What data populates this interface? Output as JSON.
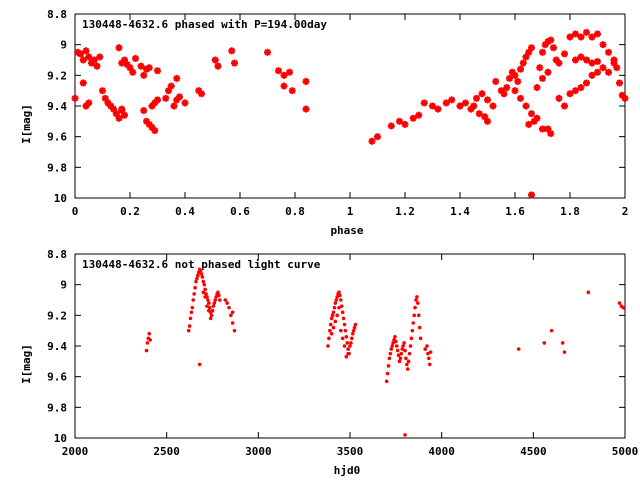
{
  "chart_data": [
    {
      "type": "scatter",
      "title": "130448-4632.6 phased with P=194.00day",
      "xlabel": "phase",
      "ylabel": "I[mag]",
      "xlim": [
        0,
        2
      ],
      "ylim": [
        10,
        8.8
      ],
      "y_inverted": true,
      "grid": false,
      "color": "#ff0000",
      "marker": "asterisk",
      "xticks": [
        "0",
        "0.2",
        "0.4",
        "0.6",
        "0.8",
        "1",
        "1.2",
        "1.4",
        "1.6",
        "1.8",
        "2"
      ],
      "yticks": [
        "8.8",
        "9",
        "9.2",
        "9.4",
        "9.6",
        "9.8",
        "10"
      ],
      "points": [
        [
          0.01,
          9.05
        ],
        [
          0.02,
          9.06
        ],
        [
          0.03,
          9.1
        ],
        [
          0.04,
          9.04
        ],
        [
          0.05,
          9.08
        ],
        [
          0.06,
          9.12
        ],
        [
          0.07,
          9.1
        ],
        [
          0.08,
          9.14
        ],
        [
          0.05,
          9.38
        ],
        [
          0.04,
          9.4
        ],
        [
          0.03,
          9.25
        ],
        [
          0.0,
          9.35
        ],
        [
          0.09,
          9.08
        ],
        [
          0.1,
          9.3
        ],
        [
          0.11,
          9.35
        ],
        [
          0.12,
          9.38
        ],
        [
          0.13,
          9.4
        ],
        [
          0.14,
          9.42
        ],
        [
          0.15,
          9.45
        ],
        [
          0.16,
          9.48
        ],
        [
          0.17,
          9.43
        ],
        [
          0.16,
          9.02
        ],
        [
          0.17,
          9.12
        ],
        [
          0.18,
          9.1
        ],
        [
          0.19,
          9.13
        ],
        [
          0.2,
          9.15
        ],
        [
          0.21,
          9.18
        ],
        [
          0.22,
          9.09
        ],
        [
          0.24,
          9.14
        ],
        [
          0.25,
          9.2
        ],
        [
          0.26,
          9.16
        ],
        [
          0.27,
          9.15
        ],
        [
          0.28,
          9.4
        ],
        [
          0.29,
          9.38
        ],
        [
          0.3,
          9.36
        ],
        [
          0.26,
          9.5
        ],
        [
          0.27,
          9.52
        ],
        [
          0.28,
          9.54
        ],
        [
          0.29,
          9.56
        ],
        [
          0.25,
          9.43
        ],
        [
          0.33,
          9.35
        ],
        [
          0.34,
          9.3
        ],
        [
          0.35,
          9.27
        ],
        [
          0.36,
          9.4
        ],
        [
          0.37,
          9.36
        ],
        [
          0.38,
          9.34
        ],
        [
          0.4,
          9.38
        ],
        [
          0.37,
          9.22
        ],
        [
          0.3,
          9.17
        ],
        [
          0.45,
          9.3
        ],
        [
          0.46,
          9.32
        ],
        [
          0.51,
          9.1
        ],
        [
          0.52,
          9.14
        ],
        [
          0.57,
          9.04
        ],
        [
          0.58,
          9.12
        ],
        [
          0.7,
          9.05
        ],
        [
          0.74,
          9.17
        ],
        [
          0.76,
          9.2
        ],
        [
          0.78,
          9.18
        ],
        [
          0.76,
          9.27
        ],
        [
          0.79,
          9.3
        ],
        [
          0.84,
          9.24
        ],
        [
          0.84,
          9.42
        ],
        [
          0.17,
          9.42
        ],
        [
          0.18,
          9.46
        ],
        [
          1.08,
          9.63
        ],
        [
          1.1,
          9.6
        ],
        [
          1.15,
          9.53
        ],
        [
          1.18,
          9.5
        ],
        [
          1.2,
          9.52
        ],
        [
          1.23,
          9.48
        ],
        [
          1.25,
          9.46
        ],
        [
          1.27,
          9.38
        ],
        [
          1.3,
          9.4
        ],
        [
          1.32,
          9.42
        ],
        [
          1.35,
          9.38
        ],
        [
          1.37,
          9.36
        ],
        [
          1.4,
          9.4
        ],
        [
          1.42,
          9.38
        ],
        [
          1.44,
          9.42
        ],
        [
          1.45,
          9.4
        ],
        [
          1.47,
          9.45
        ],
        [
          1.49,
          9.47
        ],
        [
          1.5,
          9.5
        ],
        [
          1.46,
          9.35
        ],
        [
          1.48,
          9.32
        ],
        [
          1.5,
          9.36
        ],
        [
          1.52,
          9.4
        ],
        [
          1.53,
          9.24
        ],
        [
          1.55,
          9.3
        ],
        [
          1.56,
          9.32
        ],
        [
          1.57,
          9.28
        ],
        [
          1.58,
          9.22
        ],
        [
          1.59,
          9.18
        ],
        [
          1.6,
          9.2
        ],
        [
          1.61,
          9.24
        ],
        [
          1.62,
          9.16
        ],
        [
          1.63,
          9.12
        ],
        [
          1.64,
          9.08
        ],
        [
          1.65,
          9.05
        ],
        [
          1.66,
          9.02
        ],
        [
          1.6,
          9.3
        ],
        [
          1.62,
          9.35
        ],
        [
          1.64,
          9.4
        ],
        [
          1.66,
          9.45
        ],
        [
          1.67,
          9.5
        ],
        [
          1.65,
          9.52
        ],
        [
          1.68,
          9.48
        ],
        [
          1.7,
          9.55
        ],
        [
          1.72,
          9.55
        ],
        [
          1.73,
          9.58
        ],
        [
          1.66,
          9.98
        ],
        [
          1.69,
          9.15
        ],
        [
          1.7,
          9.05
        ],
        [
          1.71,
          9.0
        ],
        [
          1.72,
          8.98
        ],
        [
          1.73,
          8.97
        ],
        [
          1.74,
          9.02
        ],
        [
          1.75,
          9.1
        ],
        [
          1.76,
          9.12
        ],
        [
          1.78,
          9.06
        ],
        [
          1.8,
          8.95
        ],
        [
          1.82,
          8.93
        ],
        [
          1.84,
          8.95
        ],
        [
          1.86,
          8.92
        ],
        [
          1.88,
          8.95
        ],
        [
          1.9,
          8.93
        ],
        [
          1.92,
          9.0
        ],
        [
          1.94,
          9.05
        ],
        [
          1.96,
          9.1
        ],
        [
          1.97,
          9.15
        ],
        [
          1.98,
          9.25
        ],
        [
          1.99,
          9.33
        ],
        [
          2.0,
          9.35
        ],
        [
          1.78,
          9.4
        ],
        [
          1.76,
          9.35
        ],
        [
          1.8,
          9.32
        ],
        [
          1.82,
          9.3
        ],
        [
          1.84,
          9.28
        ],
        [
          1.86,
          9.25
        ],
        [
          1.88,
          9.2
        ],
        [
          1.9,
          9.18
        ],
        [
          1.92,
          9.15
        ],
        [
          1.94,
          9.18
        ],
        [
          1.96,
          9.12
        ],
        [
          1.82,
          9.1
        ],
        [
          1.84,
          9.08
        ],
        [
          1.86,
          9.1
        ],
        [
          1.88,
          9.12
        ],
        [
          1.9,
          9.11
        ],
        [
          1.68,
          9.28
        ],
        [
          1.7,
          9.22
        ],
        [
          1.72,
          9.18
        ]
      ]
    },
    {
      "type": "scatter",
      "title": "130448-4632.6 not phased light curve",
      "xlabel": "hjd0",
      "ylabel": "I[mag]",
      "xlim": [
        2000,
        5000
      ],
      "ylim": [
        10,
        8.8
      ],
      "y_inverted": true,
      "grid": false,
      "color": "#ff0000",
      "marker": "dot",
      "xticks": [
        "2000",
        "2500",
        "3000",
        "3500",
        "4000",
        "4500",
        "5000"
      ],
      "yticks": [
        "8.8",
        "9",
        "9.2",
        "9.4",
        "9.6",
        "9.8",
        "10"
      ],
      "points": [
        [
          2390,
          9.43
        ],
        [
          2395,
          9.38
        ],
        [
          2400,
          9.35
        ],
        [
          2405,
          9.32
        ],
        [
          2410,
          9.36
        ],
        [
          2620,
          9.3
        ],
        [
          2625,
          9.27
        ],
        [
          2630,
          9.22
        ],
        [
          2635,
          9.18
        ],
        [
          2640,
          9.15
        ],
        [
          2645,
          9.1
        ],
        [
          2650,
          9.06
        ],
        [
          2655,
          9.02
        ],
        [
          2660,
          8.98
        ],
        [
          2665,
          8.96
        ],
        [
          2670,
          8.94
        ],
        [
          2675,
          8.92
        ],
        [
          2680,
          8.9
        ],
        [
          2685,
          8.91
        ],
        [
          2690,
          8.93
        ],
        [
          2695,
          8.95
        ],
        [
          2700,
          8.98
        ],
        [
          2705,
          9.0
        ],
        [
          2710,
          9.03
        ],
        [
          2715,
          9.06
        ],
        [
          2720,
          9.08
        ],
        [
          2725,
          9.1
        ],
        [
          2730,
          9.12
        ],
        [
          2735,
          9.15
        ],
        [
          2740,
          9.18
        ],
        [
          2745,
          9.2
        ],
        [
          2750,
          9.17
        ],
        [
          2755,
          9.14
        ],
        [
          2760,
          9.12
        ],
        [
          2765,
          9.1
        ],
        [
          2770,
          9.08
        ],
        [
          2775,
          9.06
        ],
        [
          2780,
          9.05
        ],
        [
          2785,
          9.07
        ],
        [
          2790,
          9.1
        ],
        [
          2700,
          9.05
        ],
        [
          2710,
          9.08
        ],
        [
          2720,
          9.14
        ],
        [
          2730,
          9.17
        ],
        [
          2740,
          9.22
        ],
        [
          2680,
          9.52
        ],
        [
          2820,
          9.1
        ],
        [
          2830,
          9.12
        ],
        [
          2840,
          9.15
        ],
        [
          2850,
          9.2
        ],
        [
          2860,
          9.25
        ],
        [
          2870,
          9.3
        ],
        [
          2860,
          9.18
        ],
        [
          3380,
          9.4
        ],
        [
          3385,
          9.35
        ],
        [
          3390,
          9.3
        ],
        [
          3395,
          9.26
        ],
        [
          3400,
          9.22
        ],
        [
          3405,
          9.2
        ],
        [
          3410,
          9.18
        ],
        [
          3415,
          9.15
        ],
        [
          3420,
          9.12
        ],
        [
          3425,
          9.1
        ],
        [
          3430,
          9.08
        ],
        [
          3435,
          9.06
        ],
        [
          3440,
          9.05
        ],
        [
          3445,
          9.07
        ],
        [
          3450,
          9.1
        ],
        [
          3455,
          9.14
        ],
        [
          3460,
          9.18
        ],
        [
          3465,
          9.22
        ],
        [
          3470,
          9.26
        ],
        [
          3475,
          9.3
        ],
        [
          3480,
          9.34
        ],
        [
          3485,
          9.38
        ],
        [
          3490,
          9.42
        ],
        [
          3495,
          9.45
        ],
        [
          3500,
          9.4
        ],
        [
          3505,
          9.38
        ],
        [
          3510,
          9.35
        ],
        [
          3515,
          9.32
        ],
        [
          3520,
          9.3
        ],
        [
          3525,
          9.28
        ],
        [
          3530,
          9.26
        ],
        [
          3400,
          9.32
        ],
        [
          3410,
          9.28
        ],
        [
          3420,
          9.24
        ],
        [
          3430,
          9.2
        ],
        [
          3440,
          9.15
        ],
        [
          3450,
          9.3
        ],
        [
          3460,
          9.35
        ],
        [
          3470,
          9.4
        ],
        [
          3480,
          9.47
        ],
        [
          3490,
          9.45
        ],
        [
          3700,
          9.63
        ],
        [
          3705,
          9.58
        ],
        [
          3710,
          9.53
        ],
        [
          3715,
          9.48
        ],
        [
          3720,
          9.45
        ],
        [
          3725,
          9.42
        ],
        [
          3730,
          9.4
        ],
        [
          3735,
          9.38
        ],
        [
          3740,
          9.36
        ],
        [
          3745,
          9.34
        ],
        [
          3750,
          9.37
        ],
        [
          3755,
          9.4
        ],
        [
          3760,
          9.43
        ],
        [
          3765,
          9.46
        ],
        [
          3770,
          9.5
        ],
        [
          3775,
          9.48
        ],
        [
          3780,
          9.45
        ],
        [
          3785,
          9.42
        ],
        [
          3790,
          9.4
        ],
        [
          3795,
          9.38
        ],
        [
          3800,
          9.43
        ],
        [
          3805,
          9.48
        ],
        [
          3810,
          9.52
        ],
        [
          3815,
          9.55
        ],
        [
          3820,
          9.5
        ],
        [
          3825,
          9.45
        ],
        [
          3830,
          9.4
        ],
        [
          3835,
          9.35
        ],
        [
          3840,
          9.3
        ],
        [
          3845,
          9.25
        ],
        [
          3850,
          9.2
        ],
        [
          3855,
          9.15
        ],
        [
          3860,
          9.1
        ],
        [
          3865,
          9.08
        ],
        [
          3870,
          9.12
        ],
        [
          3875,
          9.2
        ],
        [
          3880,
          9.28
        ],
        [
          3885,
          9.35
        ],
        [
          3800,
          9.98
        ],
        [
          3920,
          9.4
        ],
        [
          3925,
          9.45
        ],
        [
          3930,
          9.48
        ],
        [
          3935,
          9.52
        ],
        [
          3940,
          9.44
        ],
        [
          3910,
          9.42
        ],
        [
          4420,
          9.42
        ],
        [
          4560,
          9.38
        ],
        [
          4600,
          9.3
        ],
        [
          4660,
          9.38
        ],
        [
          4670,
          9.44
        ],
        [
          4800,
          9.05
        ],
        [
          4970,
          9.12
        ],
        [
          4980,
          9.14
        ],
        [
          4990,
          9.15
        ]
      ]
    }
  ]
}
